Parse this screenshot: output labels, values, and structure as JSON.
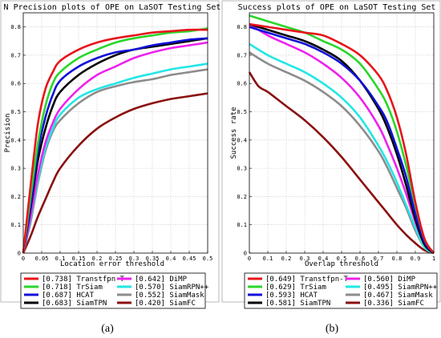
{
  "chart_data": [
    {
      "type": "line",
      "title": "N Precision plots of OPE on LaSOT Testing Set",
      "xlabel": "Location error threshold",
      "ylabel": "Precision",
      "xlim": [
        0,
        0.5
      ],
      "ylim": [
        0,
        0.85
      ],
      "xticks": [
        "0",
        "0.05",
        "0.1",
        "0.15",
        "0.2",
        "0.25",
        "0.3",
        "0.35",
        "0.4",
        "0.45",
        "0.5"
      ],
      "yticks": [
        "0",
        "0.1",
        "0.2",
        "0.3",
        "0.4",
        "0.5",
        "0.6",
        "0.7",
        "0.8"
      ],
      "grid": true,
      "legend_position": "below",
      "series": [
        {
          "name": "Transtfpn-T",
          "score": "[0.738]",
          "color": "#e8141c",
          "x": [
            0,
            0.02,
            0.04,
            0.06,
            0.08,
            0.1,
            0.15,
            0.2,
            0.25,
            0.3,
            0.35,
            0.4,
            0.45,
            0.5
          ],
          "y": [
            0,
            0.24,
            0.46,
            0.58,
            0.64,
            0.68,
            0.72,
            0.745,
            0.76,
            0.77,
            0.78,
            0.785,
            0.79,
            0.79
          ]
        },
        {
          "name": "TrSiam",
          "score": "[0.718]",
          "color": "#2ad62a",
          "x": [
            0,
            0.02,
            0.04,
            0.06,
            0.08,
            0.1,
            0.15,
            0.2,
            0.25,
            0.3,
            0.35,
            0.4,
            0.45,
            0.5
          ],
          "y": [
            0,
            0.2,
            0.39,
            0.52,
            0.6,
            0.64,
            0.69,
            0.72,
            0.745,
            0.76,
            0.77,
            0.78,
            0.785,
            0.795
          ]
        },
        {
          "name": "HCAT",
          "score": "[0.687]",
          "color": "#1010d8",
          "x": [
            0,
            0.02,
            0.04,
            0.06,
            0.08,
            0.1,
            0.15,
            0.2,
            0.25,
            0.3,
            0.35,
            0.4,
            0.45,
            0.5
          ],
          "y": [
            0,
            0.17,
            0.36,
            0.48,
            0.56,
            0.61,
            0.66,
            0.69,
            0.71,
            0.72,
            0.735,
            0.745,
            0.755,
            0.76
          ]
        },
        {
          "name": "SiamTPN",
          "score": "[0.683]",
          "color": "#000000",
          "x": [
            0,
            0.02,
            0.04,
            0.06,
            0.08,
            0.1,
            0.15,
            0.2,
            0.25,
            0.3,
            0.35,
            0.4,
            0.45,
            0.5
          ],
          "y": [
            0,
            0.16,
            0.33,
            0.44,
            0.52,
            0.57,
            0.63,
            0.67,
            0.7,
            0.72,
            0.73,
            0.74,
            0.75,
            0.76
          ]
        },
        {
          "name": "DiMP",
          "score": "[0.642]",
          "color": "#ee22ee",
          "x": [
            0,
            0.02,
            0.04,
            0.06,
            0.08,
            0.1,
            0.15,
            0.2,
            0.25,
            0.3,
            0.35,
            0.4,
            0.45,
            0.5
          ],
          "y": [
            0,
            0.13,
            0.28,
            0.39,
            0.46,
            0.51,
            0.58,
            0.63,
            0.66,
            0.69,
            0.71,
            0.725,
            0.735,
            0.745
          ]
        },
        {
          "name": "SiamRPN++",
          "score": "[0.570]",
          "color": "#22e6e6",
          "x": [
            0,
            0.02,
            0.04,
            0.06,
            0.08,
            0.1,
            0.15,
            0.2,
            0.25,
            0.3,
            0.35,
            0.4,
            0.45,
            0.5
          ],
          "y": [
            0,
            0.12,
            0.26,
            0.37,
            0.44,
            0.49,
            0.55,
            0.58,
            0.6,
            0.62,
            0.635,
            0.65,
            0.66,
            0.67
          ]
        },
        {
          "name": "SiamMask",
          "score": "[0.552]",
          "color": "#8c8c8c",
          "x": [
            0,
            0.02,
            0.04,
            0.06,
            0.08,
            0.1,
            0.15,
            0.2,
            0.25,
            0.3,
            0.35,
            0.4,
            0.45,
            0.5
          ],
          "y": [
            0,
            0.11,
            0.25,
            0.36,
            0.43,
            0.47,
            0.53,
            0.57,
            0.59,
            0.605,
            0.615,
            0.63,
            0.64,
            0.65
          ]
        },
        {
          "name": "SiamFC",
          "score": "[0.420]",
          "color": "#8b1010",
          "x": [
            0,
            0.02,
            0.04,
            0.06,
            0.08,
            0.1,
            0.15,
            0.2,
            0.25,
            0.3,
            0.35,
            0.4,
            0.45,
            0.5
          ],
          "y": [
            0,
            0.06,
            0.13,
            0.19,
            0.25,
            0.3,
            0.38,
            0.44,
            0.48,
            0.51,
            0.53,
            0.545,
            0.555,
            0.565
          ]
        }
      ]
    },
    {
      "type": "line",
      "title": "Success plots of OPE on LaSOT Testing Set",
      "xlabel": "Overlap threshold",
      "ylabel": "Success rate",
      "xlim": [
        0,
        1
      ],
      "ylim": [
        0,
        0.85
      ],
      "xticks": [
        "0",
        "0.1",
        "0.2",
        "0.3",
        "0.4",
        "0.5",
        "0.6",
        "0.7",
        "0.8",
        "0.9",
        "1"
      ],
      "yticks": [
        "0",
        "0.1",
        "0.2",
        "0.3",
        "0.4",
        "0.5",
        "0.6",
        "0.7",
        "0.8"
      ],
      "grid": true,
      "legend_position": "below",
      "series": [
        {
          "name": "Transtfpn-T",
          "score": "[0.649]",
          "color": "#e8141c",
          "x": [
            0,
            0.1,
            0.2,
            0.3,
            0.4,
            0.5,
            0.6,
            0.7,
            0.75,
            0.8,
            0.85,
            0.9,
            0.95,
            1
          ],
          "y": [
            0.81,
            0.8,
            0.79,
            0.78,
            0.77,
            0.74,
            0.7,
            0.63,
            0.57,
            0.48,
            0.35,
            0.18,
            0.05,
            0
          ]
        },
        {
          "name": "TrSiam",
          "score": "[0.629]",
          "color": "#2ad62a",
          "x": [
            0,
            0.1,
            0.2,
            0.3,
            0.4,
            0.5,
            0.6,
            0.7,
            0.75,
            0.8,
            0.85,
            0.9,
            0.95,
            1
          ],
          "y": [
            0.84,
            0.82,
            0.8,
            0.78,
            0.75,
            0.72,
            0.67,
            0.58,
            0.52,
            0.43,
            0.31,
            0.17,
            0.05,
            0
          ]
        },
        {
          "name": "HCAT",
          "score": "[0.593]",
          "color": "#1010d8",
          "x": [
            0,
            0.1,
            0.2,
            0.3,
            0.4,
            0.5,
            0.6,
            0.7,
            0.75,
            0.8,
            0.85,
            0.9,
            0.95,
            1
          ],
          "y": [
            0.8,
            0.78,
            0.76,
            0.74,
            0.71,
            0.67,
            0.61,
            0.52,
            0.46,
            0.37,
            0.27,
            0.14,
            0.04,
            0
          ]
        },
        {
          "name": "SiamTPN",
          "score": "[0.581]",
          "color": "#000000",
          "x": [
            0,
            0.1,
            0.2,
            0.3,
            0.4,
            0.5,
            0.6,
            0.7,
            0.75,
            0.8,
            0.85,
            0.9,
            0.95,
            1
          ],
          "y": [
            0.81,
            0.79,
            0.77,
            0.75,
            0.72,
            0.68,
            0.61,
            0.51,
            0.44,
            0.35,
            0.24,
            0.12,
            0.03,
            0
          ]
        },
        {
          "name": "DiMP",
          "score": "[0.560]",
          "color": "#ee22ee",
          "x": [
            0,
            0.1,
            0.2,
            0.3,
            0.4,
            0.5,
            0.6,
            0.7,
            0.75,
            0.8,
            0.85,
            0.9,
            0.95,
            1
          ],
          "y": [
            0.81,
            0.77,
            0.74,
            0.71,
            0.67,
            0.62,
            0.55,
            0.45,
            0.38,
            0.3,
            0.21,
            0.11,
            0.03,
            0
          ]
        },
        {
          "name": "SiamRPN++",
          "score": "[0.495]",
          "color": "#22e6e6",
          "x": [
            0,
            0.1,
            0.2,
            0.3,
            0.4,
            0.5,
            0.6,
            0.7,
            0.75,
            0.8,
            0.85,
            0.9,
            0.95,
            1
          ],
          "y": [
            0.74,
            0.7,
            0.67,
            0.64,
            0.6,
            0.55,
            0.48,
            0.38,
            0.32,
            0.25,
            0.17,
            0.09,
            0.02,
            0
          ]
        },
        {
          "name": "SiamMask",
          "score": "[0.467]",
          "color": "#8c8c8c",
          "x": [
            0,
            0.1,
            0.2,
            0.3,
            0.4,
            0.5,
            0.6,
            0.7,
            0.75,
            0.8,
            0.85,
            0.9,
            0.95,
            1
          ],
          "y": [
            0.71,
            0.67,
            0.64,
            0.61,
            0.57,
            0.52,
            0.45,
            0.36,
            0.3,
            0.23,
            0.16,
            0.08,
            0.02,
            0
          ]
        },
        {
          "name": "SiamFC",
          "score": "[0.336]",
          "color": "#8b1010",
          "x": [
            0,
            0.05,
            0.1,
            0.2,
            0.3,
            0.4,
            0.5,
            0.6,
            0.7,
            0.75,
            0.8,
            0.85,
            0.9,
            0.95,
            1
          ],
          "y": [
            0.64,
            0.59,
            0.57,
            0.52,
            0.47,
            0.41,
            0.34,
            0.26,
            0.18,
            0.14,
            0.1,
            0.065,
            0.035,
            0.01,
            0
          ]
        }
      ]
    }
  ],
  "captions": [
    "(a)",
    "(b)"
  ]
}
